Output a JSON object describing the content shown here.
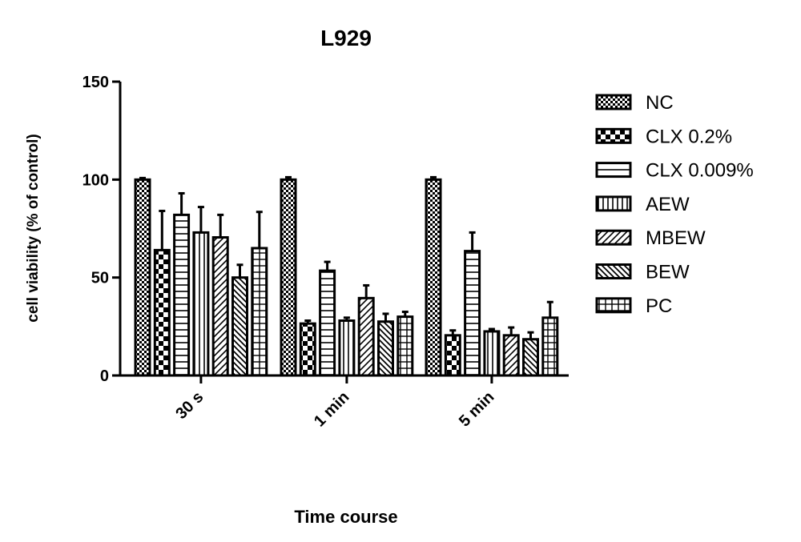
{
  "chart_data": {
    "type": "bar",
    "title": "L929",
    "xlabel": "Time course",
    "ylabel": "cell viability (% of control)",
    "ylim": [
      0,
      150
    ],
    "yticks": [
      0,
      50,
      100,
      150
    ],
    "legend_position": "right",
    "grid": false,
    "categories": [
      "30 s",
      "1 min",
      "5 min"
    ],
    "series": [
      {
        "name": "NC",
        "pattern": "checker-fine",
        "values": [
          100,
          100,
          100
        ],
        "errors": [
          0.8,
          1.2,
          1.2
        ]
      },
      {
        "name": "CLX 0.2%",
        "pattern": "checker-coarse",
        "values": [
          64,
          26.5,
          20.5
        ],
        "errors": [
          20,
          1.5,
          2.5
        ]
      },
      {
        "name": "CLX 0.009%",
        "pattern": "horizontal",
        "values": [
          82,
          53.5,
          63.5
        ],
        "errors": [
          11,
          4.5,
          9.5
        ]
      },
      {
        "name": "AEW",
        "pattern": "vertical",
        "values": [
          73,
          28,
          22.5
        ],
        "errors": [
          13,
          1.5,
          1.2
        ]
      },
      {
        "name": "MBEW",
        "pattern": "diag-up",
        "values": [
          70.5,
          39.5,
          20.5
        ],
        "errors": [
          11.5,
          6.5,
          4
        ]
      },
      {
        "name": "BEW",
        "pattern": "diag-down",
        "values": [
          50,
          27.5,
          18.5
        ],
        "errors": [
          6.5,
          4,
          3.5
        ]
      },
      {
        "name": "PC",
        "pattern": "grid",
        "values": [
          65,
          30,
          29.5
        ],
        "errors": [
          18.5,
          2.5,
          8
        ]
      }
    ]
  }
}
